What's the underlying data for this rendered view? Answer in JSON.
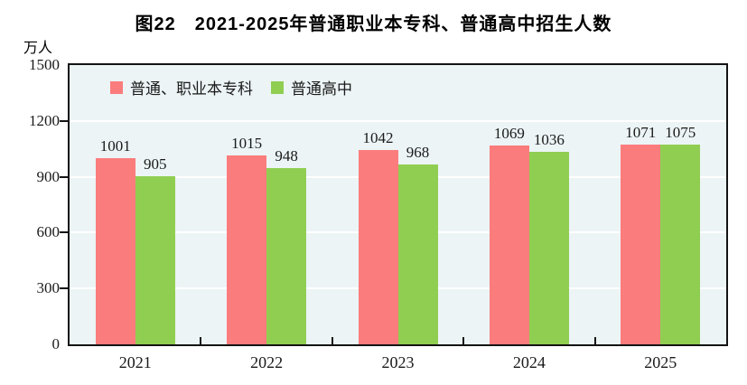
{
  "title": "图22　2021-2025年普通职业本专科、普通高中招生人数",
  "unit_label": "万人",
  "chart_data": {
    "type": "bar",
    "title": "图22　2021-2025年普通职业本专科、普通高中招生人数",
    "categories": [
      "2021",
      "2022",
      "2023",
      "2024",
      "2025"
    ],
    "series": [
      {
        "name": "普通、职业本专科",
        "color": "#FB7C7C",
        "values": [
          1001,
          1015,
          1042,
          1069,
          1071
        ]
      },
      {
        "name": "普通高中",
        "color": "#90CE52",
        "values": [
          905,
          948,
          968,
          1036,
          1075
        ]
      }
    ],
    "ylabel": "万人",
    "ylim": [
      0,
      1500
    ],
    "yticks": [
      0,
      300,
      600,
      900,
      1200,
      1500
    ],
    "grid": true,
    "value_labels": true,
    "legend_position": "top-left"
  },
  "colors": {
    "plot_bg": "#ECF4F6",
    "gridline": "#FFFFFF",
    "axis": "#141414",
    "text": "#000000"
  }
}
